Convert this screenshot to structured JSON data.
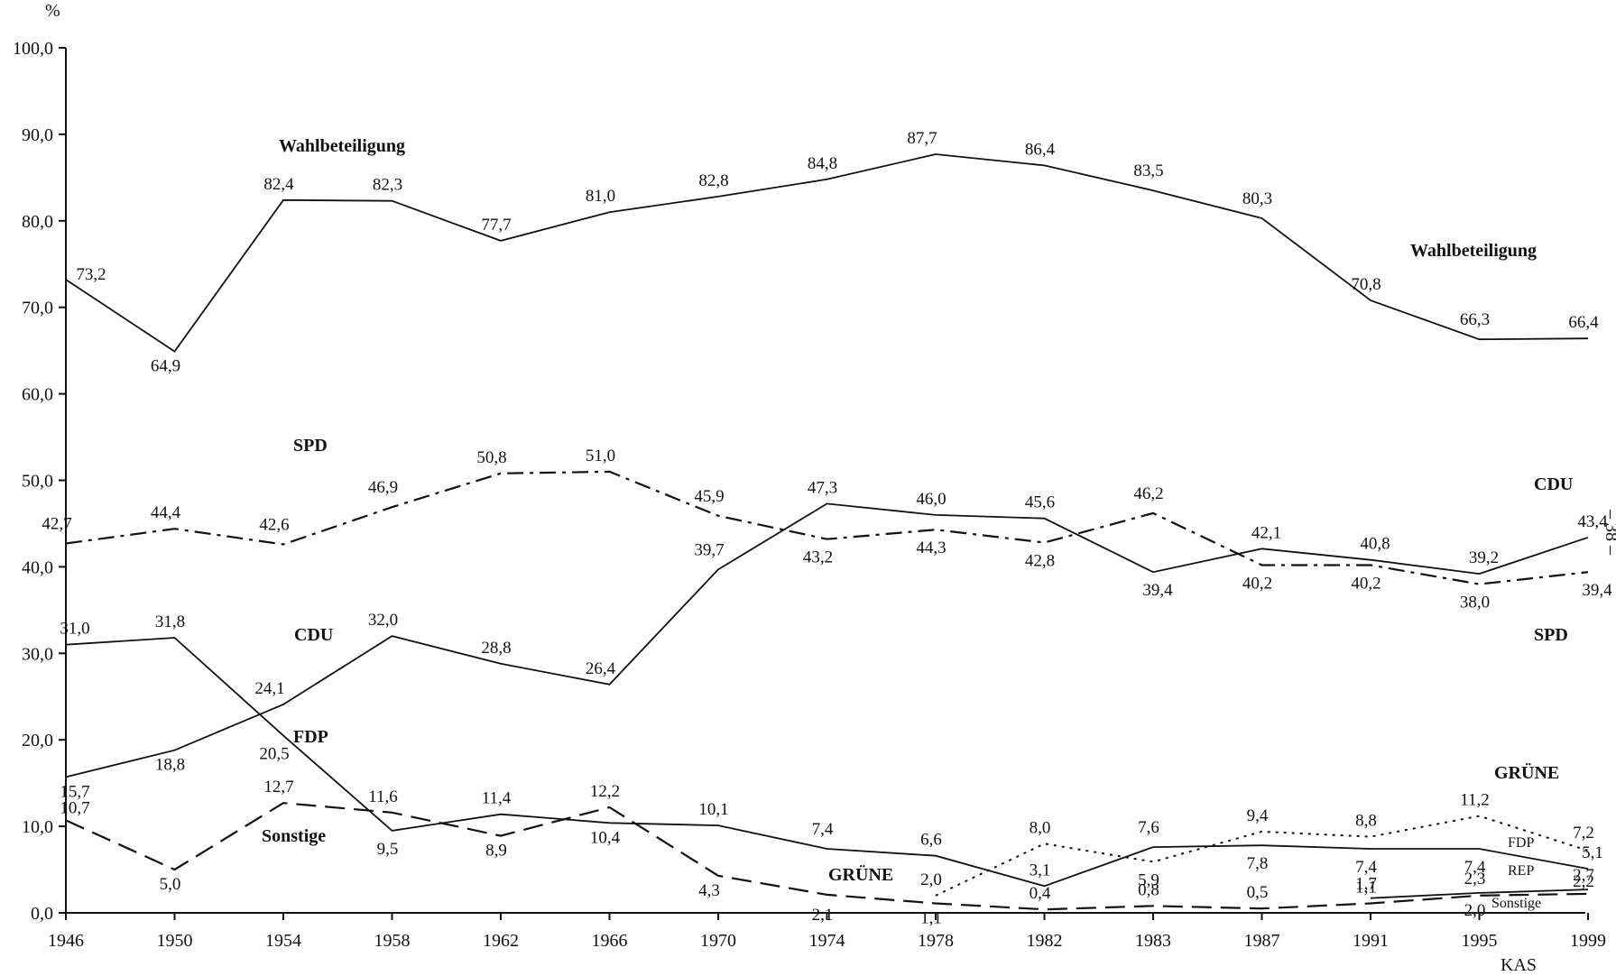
{
  "chart_data": {
    "type": "line",
    "x": [
      "1946",
      "1950",
      "1954",
      "1958",
      "1962",
      "1966",
      "1970",
      "1974",
      "1978",
      "1982",
      "1983",
      "1987",
      "1991",
      "1995",
      "1999"
    ],
    "ylabel": "%",
    "ylim": [
      0,
      100
    ],
    "yticks": [
      "0,0",
      "10,0",
      "20,0",
      "30,0",
      "40,0",
      "50,0",
      "60,0",
      "70,0",
      "80,0",
      "90,0",
      "100,0"
    ],
    "grid": false,
    "series": [
      {
        "name": "Wahlbeteiligung",
        "style": "solid",
        "values": [
          73.2,
          64.9,
          82.4,
          82.3,
          77.7,
          81.0,
          82.8,
          84.8,
          87.7,
          86.4,
          83.5,
          80.3,
          70.8,
          66.3,
          66.4
        ],
        "labels": [
          "73,2",
          "64,9",
          "82,4",
          "82,3",
          "77,7",
          "81,0",
          "82,8",
          "84,8",
          "87,7",
          "86,4",
          "83,5",
          "80,3",
          "70,8",
          "66,3",
          "66,4"
        ]
      },
      {
        "name": "SPD",
        "style": "dashdot",
        "values": [
          42.7,
          44.4,
          42.6,
          46.9,
          50.8,
          51.0,
          45.9,
          43.2,
          44.3,
          42.8,
          46.2,
          40.2,
          40.2,
          38.0,
          39.4
        ],
        "labels": [
          "42,7",
          "44,4",
          "42,6",
          "46,9",
          "50,8",
          "51,0",
          "45,9",
          "43,2",
          "44,3",
          "42,8",
          "46,2",
          "40,2",
          "40,2",
          "38,0",
          "39,4"
        ]
      },
      {
        "name": "CDU",
        "style": "solid",
        "values": [
          15.7,
          18.8,
          24.1,
          32.0,
          28.8,
          26.4,
          39.7,
          47.3,
          46.0,
          45.6,
          39.4,
          42.1,
          40.8,
          39.2,
          43.4
        ],
        "labels": [
          "15,7",
          "18,8",
          "24,1",
          "32,0",
          "28,8",
          "26,4",
          "39,7",
          "47,3",
          "46,0",
          "45,6",
          "39,4",
          "42,1",
          "40,8",
          "39,2",
          "43,4"
        ]
      },
      {
        "name": "FDP",
        "style": "solid",
        "values": [
          31.0,
          31.8,
          20.5,
          9.5,
          11.4,
          10.4,
          10.1,
          7.4,
          6.6,
          3.1,
          7.6,
          7.8,
          7.4,
          7.4,
          5.1
        ],
        "labels": [
          "31,0",
          "31,8",
          "20,5",
          "9,5",
          "11,4",
          "10,4",
          "10,1",
          "7,4",
          "6,6",
          "3,1",
          "7,6",
          "7,8",
          "7,4",
          "7,4",
          "5,1"
        ]
      },
      {
        "name": "Sonstige",
        "style": "dashed",
        "values": [
          10.7,
          5.0,
          12.7,
          11.6,
          8.9,
          12.2,
          4.3,
          2.1,
          1.1,
          0.4,
          0.8,
          0.5,
          1.1,
          2.0,
          2.2
        ],
        "labels": [
          "10,7",
          "5,0",
          "12,7",
          "11,6",
          "8,9",
          "12,2",
          "4,3",
          "2,1",
          "1,1",
          "0,4",
          "0,8",
          "0,5",
          "1,1",
          "2,0",
          "2,2"
        ]
      },
      {
        "name": "GRÜNE",
        "style": "dotted",
        "values": [
          null,
          null,
          null,
          null,
          null,
          null,
          null,
          null,
          2.0,
          8.0,
          5.9,
          9.4,
          8.8,
          11.2,
          7.2
        ],
        "labels": [
          "",
          "",
          "",
          "",
          "",
          "",
          "",
          "",
          "2,0",
          "8,0",
          "5,9",
          "9,4",
          "8,8",
          "11,2",
          "7,2"
        ]
      },
      {
        "name": "REP",
        "style": "solid",
        "values": [
          null,
          null,
          null,
          null,
          null,
          null,
          null,
          null,
          null,
          null,
          null,
          null,
          1.7,
          2.3,
          2.7
        ],
        "labels": [
          "",
          "",
          "",
          "",
          "",
          "",
          "",
          "",
          "",
          "",
          "",
          "",
          "1,7",
          "2,3",
          "2,7"
        ]
      }
    ],
    "annotations": [
      {
        "text": "Wahlbeteiligung",
        "bold": true
      },
      {
        "text": "Wahlbeteiligung",
        "bold": true
      },
      {
        "text": "SPD",
        "bold": true
      },
      {
        "text": "CDU",
        "bold": true
      },
      {
        "text": "FDP",
        "bold": true
      },
      {
        "text": "Sonstige",
        "bold": true
      },
      {
        "text": "GRÜNE",
        "bold": true
      },
      {
        "text": "CDU",
        "bold": true
      },
      {
        "text": "SPD",
        "bold": true
      },
      {
        "text": "GRÜNE",
        "bold": true
      },
      {
        "text": "FDP",
        "bold": false
      },
      {
        "text": "REP",
        "bold": false
      },
      {
        "text": "Sonstige",
        "bold": false
      }
    ],
    "footer": "KAS",
    "side_mark": "– 38 –"
  }
}
